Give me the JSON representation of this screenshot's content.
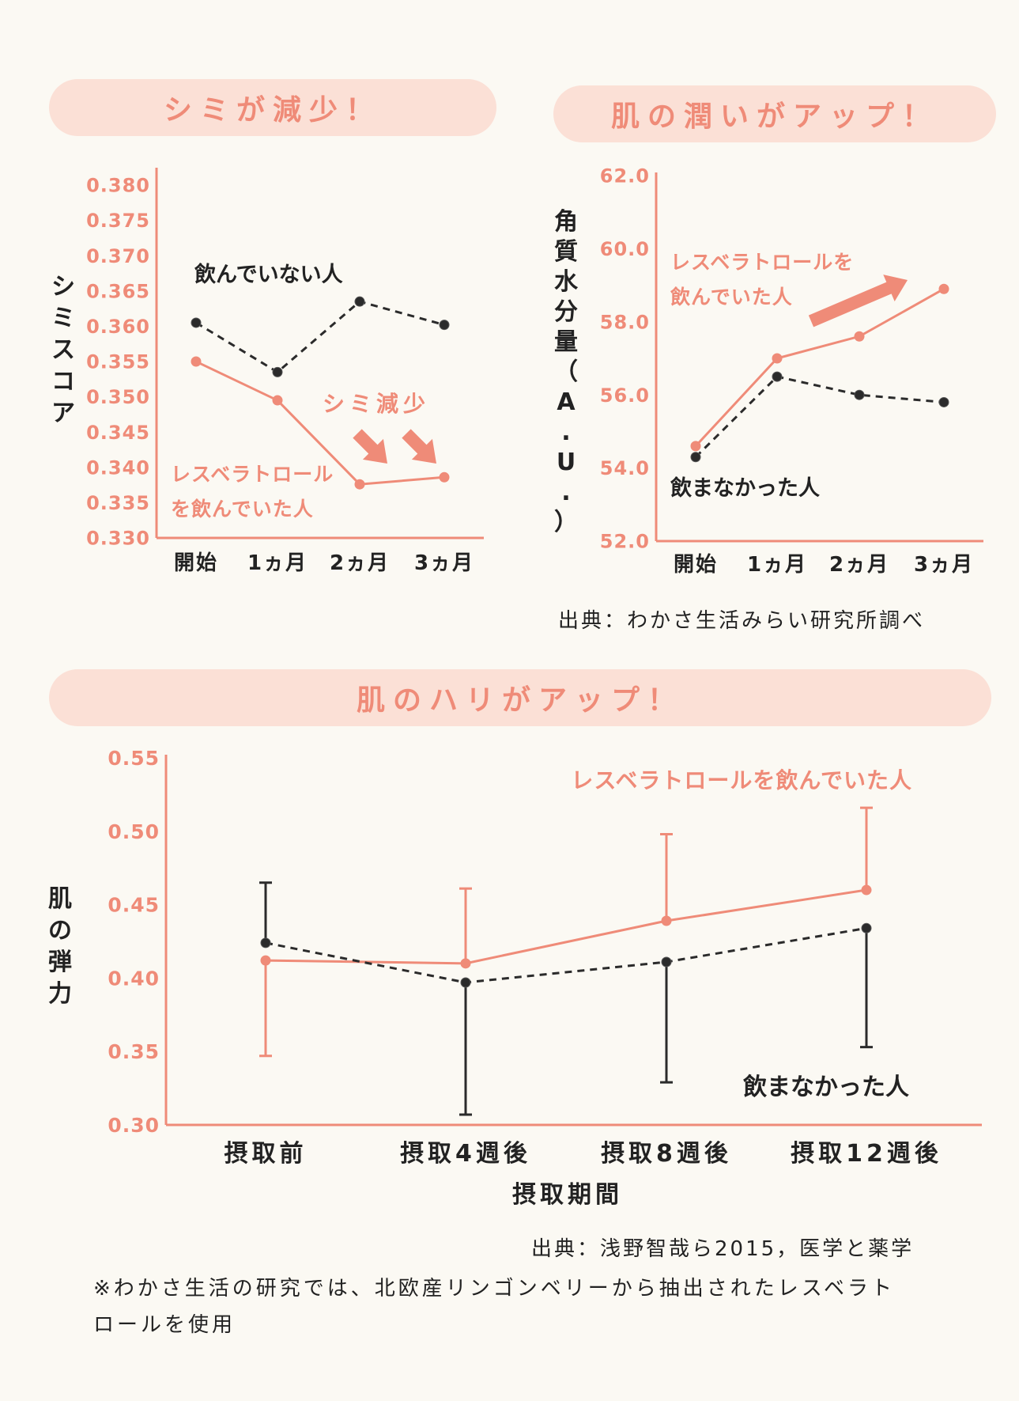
{
  "colors": {
    "accent": "#ef8b78",
    "dark": "#2b2b2b",
    "pill": "#fbe0d6"
  },
  "chart_data": [
    {
      "type": "line",
      "title": "シミが減少！",
      "ylabel": "シミスコア",
      "categories": [
        "開始",
        "1ヵ月",
        "2ヵ月",
        "3ヵ月"
      ],
      "y_ticks": [
        "0.380",
        "0.375",
        "0.370",
        "0.365",
        "0.360",
        "0.355",
        "0.350",
        "0.345",
        "0.340",
        "0.335",
        "0.330"
      ],
      "ylim": [
        0.33,
        0.38
      ],
      "series": [
        {
          "name": "飲んでいない人",
          "style": "dashed",
          "color": "#2b2b2b",
          "values": [
            0.3605,
            0.3535,
            0.3635,
            0.3602
          ]
        },
        {
          "name": "レスベラトロールを飲んでいた人",
          "style": "solid",
          "color": "#ef8b78",
          "values": [
            0.355,
            0.3495,
            0.3376,
            0.3386
          ]
        }
      ],
      "legend_lines": {
        "control": "飲んでいない人",
        "treated_1": "レスベラトロール",
        "treated_2": "を飲んでいた人"
      },
      "annotation": "シミ減少"
    },
    {
      "type": "line",
      "title": "肌の潤いがアップ！",
      "ylabel_chars": [
        "角",
        "質",
        "水",
        "分",
        "量",
        "（",
        "A",
        ".",
        "U",
        ".",
        "）"
      ],
      "categories": [
        "開始",
        "1ヵ月",
        "2ヵ月",
        "3ヵ月"
      ],
      "y_ticks": [
        "62.0",
        "60.0",
        "58.0",
        "56.0",
        "54.0",
        "52.0"
      ],
      "ylim": [
        52.0,
        62.0
      ],
      "series": [
        {
          "name": "レスベラトロールを飲んでいた人",
          "style": "solid",
          "color": "#ef8b78",
          "values": [
            54.6,
            57.0,
            57.6,
            58.9
          ]
        },
        {
          "name": "飲まなかった人",
          "style": "dashed",
          "color": "#2b2b2b",
          "values": [
            54.3,
            56.5,
            56.0,
            55.8
          ]
        }
      ],
      "legend_lines": {
        "treated_1": "レスベラトロールを",
        "treated_2": "飲んでいた人",
        "control": "飲まなかった人"
      },
      "source": "出典：わかさ生活みらい研究所調べ"
    },
    {
      "type": "line",
      "title": "肌のハリがアップ！",
      "ylabel_chars": [
        "肌",
        "の",
        "弾",
        "力"
      ],
      "xlabel": "摂取期間",
      "categories": [
        "摂取前",
        "摂取4週後",
        "摂取8週後",
        "摂取12週後"
      ],
      "y_ticks": [
        "0.55",
        "0.50",
        "0.45",
        "0.40",
        "0.35",
        "0.30"
      ],
      "ylim": [
        0.3,
        0.55
      ],
      "series": [
        {
          "name": "レスベラトロールを飲んでいた人",
          "style": "solid",
          "color": "#ef8b78",
          "values": [
            0.412,
            0.41,
            0.439,
            0.46
          ],
          "error_low": [
            0.347,
            null,
            null,
            null
          ],
          "error_high": [
            null,
            0.461,
            0.498,
            0.516
          ]
        },
        {
          "name": "飲まなかった人",
          "style": "dashed",
          "color": "#2b2b2b",
          "values": [
            0.424,
            0.397,
            0.411,
            0.434
          ],
          "error_low": [
            null,
            0.307,
            0.329,
            0.353
          ],
          "error_high": [
            0.465,
            null,
            null,
            null
          ]
        }
      ],
      "source": "出典：浅野智哉ら2015，医学と薬学"
    }
  ],
  "footnote_1": "※わかさ生活の研究では、北欧産リンゴンベリーから抽出されたレスベラト",
  "footnote_2": "ロールを使用"
}
